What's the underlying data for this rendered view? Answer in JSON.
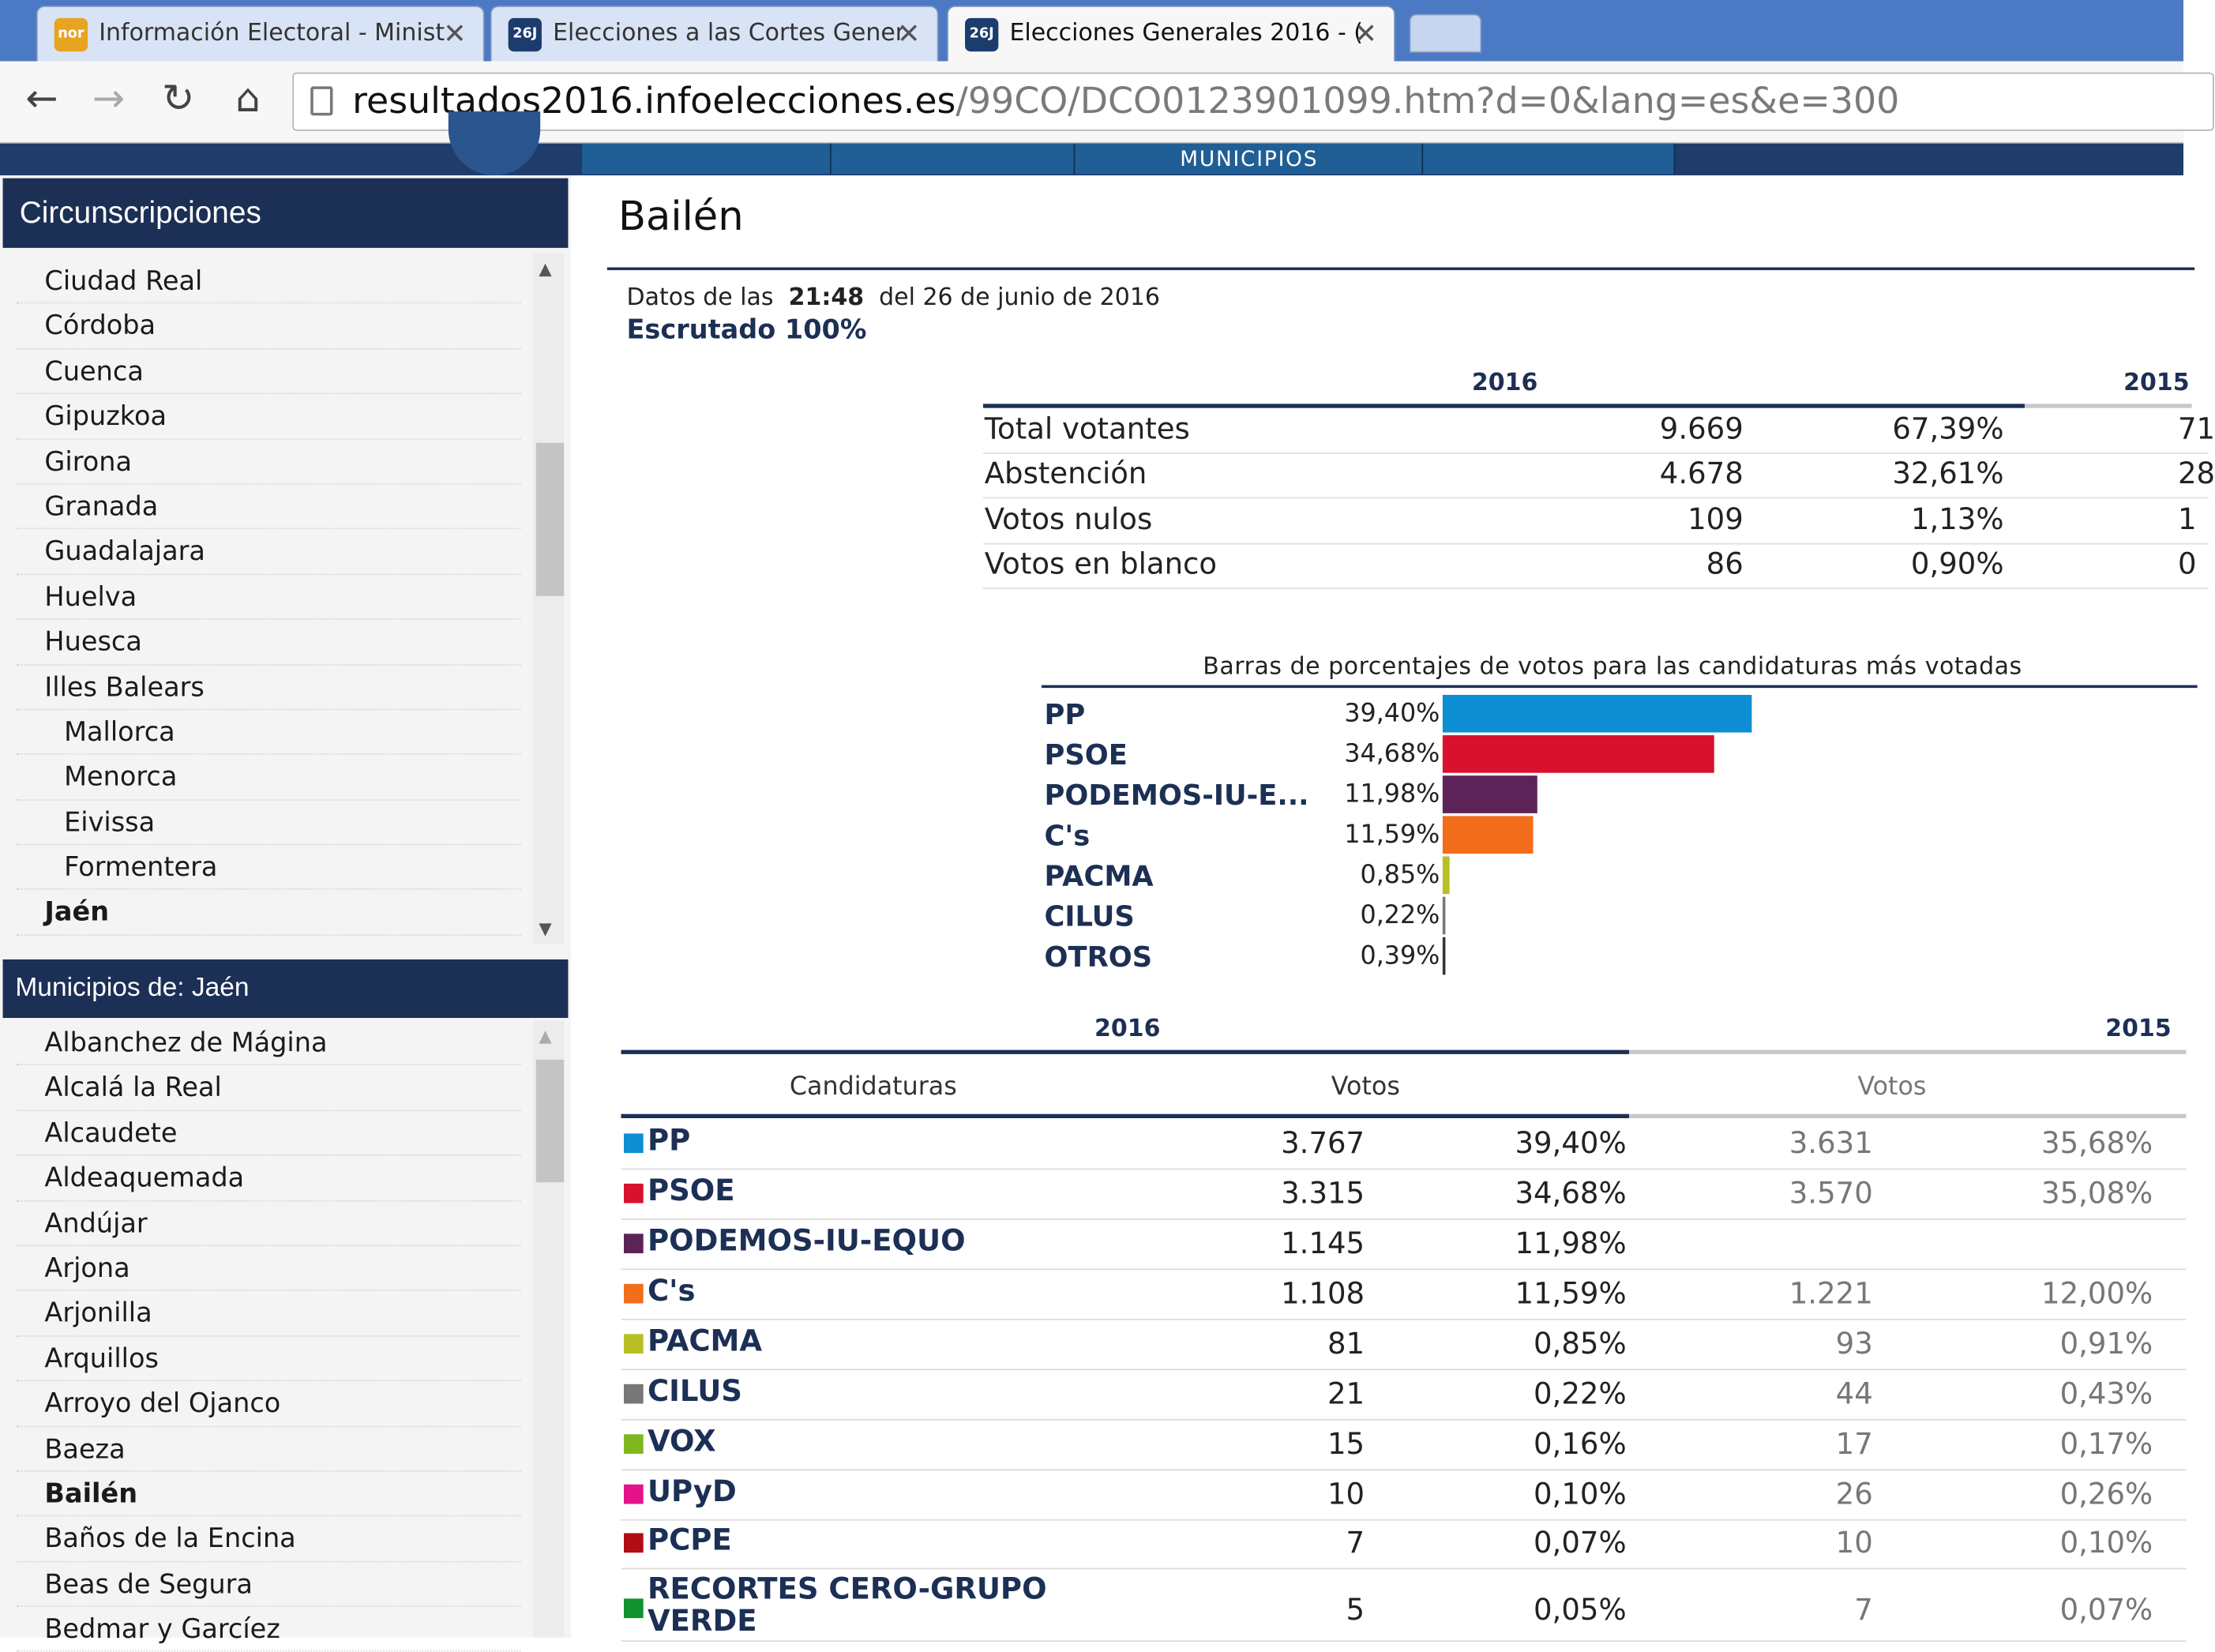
{
  "browser": {
    "tabs": [
      {
        "title": "Información Electoral - Minist",
        "favicon": "spanish-ministry-icon",
        "favicon_text": "nor",
        "active": false
      },
      {
        "title": "Elecciones a las Cortes Gener",
        "favicon": "26j-icon",
        "favicon_text": "26J",
        "active": false
      },
      {
        "title": "Elecciones Generales 2016 - (",
        "favicon": "26j-icon",
        "favicon_text": "26J",
        "active": true
      }
    ],
    "url_host": "resultados2016.infoelecciones.es",
    "url_path": "/99CO/DCO0123901099.htm?d=0&lang=es&e=300",
    "nav_icons": [
      "back-arrow-icon",
      "forward-arrow-icon",
      "reload-icon",
      "home-icon",
      "page-icon"
    ]
  },
  "site_nav": {
    "label": "MUNICIPIOS"
  },
  "sidebar": {
    "circ_title": "Circunscripciones",
    "circ_items": [
      {
        "label": "Ciudad Real",
        "sub": false,
        "bold": false
      },
      {
        "label": "Córdoba",
        "sub": false,
        "bold": false
      },
      {
        "label": "Cuenca",
        "sub": false,
        "bold": false
      },
      {
        "label": "Gipuzkoa",
        "sub": false,
        "bold": false
      },
      {
        "label": "Girona",
        "sub": false,
        "bold": false
      },
      {
        "label": "Granada",
        "sub": false,
        "bold": false
      },
      {
        "label": "Guadalajara",
        "sub": false,
        "bold": false
      },
      {
        "label": "Huelva",
        "sub": false,
        "bold": false
      },
      {
        "label": "Huesca",
        "sub": false,
        "bold": false
      },
      {
        "label": "Illes Balears",
        "sub": false,
        "bold": false
      },
      {
        "label": "Mallorca",
        "sub": true,
        "bold": false
      },
      {
        "label": "Menorca",
        "sub": true,
        "bold": false
      },
      {
        "label": "Eivissa",
        "sub": true,
        "bold": false
      },
      {
        "label": "Formentera",
        "sub": true,
        "bold": false
      },
      {
        "label": "Jaén",
        "sub": false,
        "bold": true
      }
    ],
    "muni_title": "Municipios de: Jaén",
    "muni_items": [
      {
        "label": "Albanchez de Mágina",
        "bold": false
      },
      {
        "label": "Alcalá la Real",
        "bold": false
      },
      {
        "label": "Alcaudete",
        "bold": false
      },
      {
        "label": "Aldeaquemada",
        "bold": false
      },
      {
        "label": "Andújar",
        "bold": false
      },
      {
        "label": "Arjona",
        "bold": false
      },
      {
        "label": "Arjonilla",
        "bold": false
      },
      {
        "label": "Arquillos",
        "bold": false
      },
      {
        "label": "Arroyo del Ojanco",
        "bold": false
      },
      {
        "label": "Baeza",
        "bold": false
      },
      {
        "label": "Bailén",
        "bold": true
      },
      {
        "label": "Baños de la Encina",
        "bold": false
      },
      {
        "label": "Beas de Segura",
        "bold": false
      },
      {
        "label": "Bedmar y Garcíez",
        "bold": false
      }
    ]
  },
  "main": {
    "title": "Bailén",
    "datos_prefix": "Datos de las",
    "datos_time": "21:48",
    "datos_suffix": "del 26 de junio de 2016",
    "escrutado": "Escrutado 100%",
    "summary_year_2016": "2016",
    "summary_year_2015": "2015",
    "summary": [
      {
        "label": "Total votantes",
        "v2016": "9.669",
        "p2016": "67,39%",
        "v2015": "71"
      },
      {
        "label": "Abstención",
        "v2016": "4.678",
        "p2016": "32,61%",
        "v2015": "28"
      },
      {
        "label": "Votos nulos",
        "v2016": "109",
        "p2016": "1,13%",
        "v2015": "1"
      },
      {
        "label": "Votos en blanco",
        "v2016": "86",
        "p2016": "0,90%",
        "v2015": "0"
      }
    ],
    "bars_caption": "Barras de porcentajes de votos para las candidaturas más votadas",
    "bars": [
      {
        "name": "PP",
        "pct_text": "39,40%",
        "pct": 39.4,
        "color": "#0e8ed3"
      },
      {
        "name": "PSOE",
        "pct_text": "34,68%",
        "pct": 34.68,
        "color": "#d8112f"
      },
      {
        "name": "PODEMOS-IU-E...",
        "pct_text": "11,98%",
        "pct": 11.98,
        "color": "#5c2358"
      },
      {
        "name": "C's",
        "pct_text": "11,59%",
        "pct": 11.59,
        "color": "#f26d1c"
      },
      {
        "name": "PACMA",
        "pct_text": "0,85%",
        "pct": 0.85,
        "color": "#b7c125"
      },
      {
        "name": "CILUS",
        "pct_text": "0,22%",
        "pct": 0.22,
        "color": "#777777"
      },
      {
        "name": "OTROS",
        "pct_text": "0,39%",
        "pct": 0.39,
        "color": "#333333"
      }
    ],
    "results_year_2016": "2016",
    "results_year_2015": "2015",
    "col_candidaturas": "Candidaturas",
    "col_votos_2016": "Votos",
    "col_votos_2015": "Votos",
    "results": [
      {
        "name": "PP",
        "color": "#0e8ed3",
        "v2016": "3.767",
        "p2016": "39,40%",
        "v2015": "3.631",
        "p2015": "35,68%"
      },
      {
        "name": "PSOE",
        "color": "#d8112f",
        "v2016": "3.315",
        "p2016": "34,68%",
        "v2015": "3.570",
        "p2015": "35,08%"
      },
      {
        "name": "PODEMOS-IU-EQUO",
        "color": "#5c2358",
        "v2016": "1.145",
        "p2016": "11,98%",
        "v2015": "",
        "p2015": ""
      },
      {
        "name": "C's",
        "color": "#f26d1c",
        "v2016": "1.108",
        "p2016": "11,59%",
        "v2015": "1.221",
        "p2015": "12,00%"
      },
      {
        "name": "PACMA",
        "color": "#b7c125",
        "v2016": "81",
        "p2016": "0,85%",
        "v2015": "93",
        "p2015": "0,91%"
      },
      {
        "name": "CILUS",
        "color": "#777777",
        "v2016": "21",
        "p2016": "0,22%",
        "v2015": "44",
        "p2015": "0,43%"
      },
      {
        "name": "VOX",
        "color": "#7fb81e",
        "v2016": "15",
        "p2016": "0,16%",
        "v2015": "17",
        "p2015": "0,17%"
      },
      {
        "name": "UPyD",
        "color": "#e5138a",
        "v2016": "10",
        "p2016": "0,10%",
        "v2015": "26",
        "p2015": "0,26%"
      },
      {
        "name": "PCPE",
        "color": "#b00d16",
        "v2016": "7",
        "p2016": "0,07%",
        "v2015": "10",
        "p2015": "0,10%"
      },
      {
        "name": "RECORTES CERO-GRUPO VERDE",
        "color": "#12922f",
        "v2016": "5",
        "p2016": "0,05%",
        "v2015": "7",
        "p2015": "0,07%"
      }
    ]
  }
}
